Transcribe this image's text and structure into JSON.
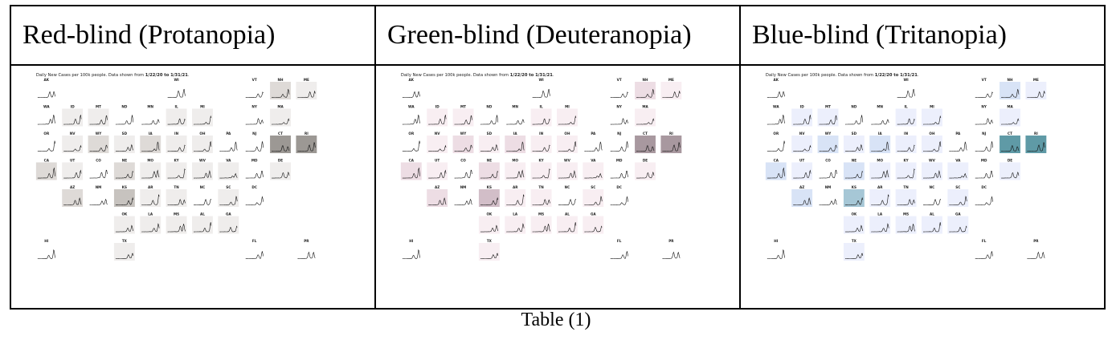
{
  "table": {
    "headers": [
      "Red-blind (Protanopia)",
      "Green-blind (Deuteranopia)",
      "Blue-blind (Tritanopia)"
    ],
    "caption": "Table (1)"
  },
  "map": {
    "description_prefix": "Daily New Cases per 100k people. Data shown from ",
    "description_range": "1/22/20 to 1/31/21",
    "description_suffix": ".",
    "states": [
      {
        "code": "AK",
        "col": 0,
        "row": 0,
        "level": 0
      },
      {
        "code": "WI",
        "col": 5,
        "row": 0,
        "level": 0
      },
      {
        "code": "VT",
        "col": 8,
        "row": 0,
        "level": 0
      },
      {
        "code": "NH",
        "col": 9,
        "row": 0,
        "level": 2
      },
      {
        "code": "ME",
        "col": 10,
        "row": 0,
        "level": 1
      },
      {
        "code": "WA",
        "col": 0,
        "row": 1,
        "level": 0
      },
      {
        "code": "ID",
        "col": 1,
        "row": 1,
        "level": 1
      },
      {
        "code": "MT",
        "col": 2,
        "row": 1,
        "level": 1
      },
      {
        "code": "ND",
        "col": 3,
        "row": 1,
        "level": 0
      },
      {
        "code": "MN",
        "col": 4,
        "row": 1,
        "level": 0
      },
      {
        "code": "IL",
        "col": 5,
        "row": 1,
        "level": 1
      },
      {
        "code": "MI",
        "col": 6,
        "row": 1,
        "level": 1
      },
      {
        "code": "NY",
        "col": 8,
        "row": 1,
        "level": 0
      },
      {
        "code": "MA",
        "col": 9,
        "row": 1,
        "level": 1
      },
      {
        "code": "OR",
        "col": 0,
        "row": 2,
        "level": 0
      },
      {
        "code": "NV",
        "col": 1,
        "row": 2,
        "level": 1
      },
      {
        "code": "WY",
        "col": 2,
        "row": 2,
        "level": 2
      },
      {
        "code": "SD",
        "col": 3,
        "row": 2,
        "level": 1
      },
      {
        "code": "IA",
        "col": 4,
        "row": 2,
        "level": 2
      },
      {
        "code": "IN",
        "col": 5,
        "row": 2,
        "level": 1
      },
      {
        "code": "OH",
        "col": 6,
        "row": 2,
        "level": 1
      },
      {
        "code": "PA",
        "col": 7,
        "row": 2,
        "level": 0
      },
      {
        "code": "NJ",
        "col": 8,
        "row": 2,
        "level": 0
      },
      {
        "code": "CT",
        "col": 9,
        "row": 2,
        "level": 4
      },
      {
        "code": "RI",
        "col": 10,
        "row": 2,
        "level": 4
      },
      {
        "code": "CA",
        "col": 0,
        "row": 3,
        "level": 2
      },
      {
        "code": "UT",
        "col": 1,
        "row": 3,
        "level": 1
      },
      {
        "code": "CO",
        "col": 2,
        "row": 3,
        "level": 0
      },
      {
        "code": "NE",
        "col": 3,
        "row": 3,
        "level": 2
      },
      {
        "code": "MO",
        "col": 4,
        "row": 3,
        "level": 1
      },
      {
        "code": "KY",
        "col": 5,
        "row": 3,
        "level": 1
      },
      {
        "code": "WV",
        "col": 6,
        "row": 3,
        "level": 1
      },
      {
        "code": "VA",
        "col": 7,
        "row": 3,
        "level": 1
      },
      {
        "code": "MD",
        "col": 8,
        "row": 3,
        "level": 0
      },
      {
        "code": "DE",
        "col": 9,
        "row": 3,
        "level": 1
      },
      {
        "code": "AZ",
        "col": 1,
        "row": 4,
        "level": 2
      },
      {
        "code": "NM",
        "col": 2,
        "row": 4,
        "level": 0
      },
      {
        "code": "KS",
        "col": 3,
        "row": 4,
        "level": 3
      },
      {
        "code": "AR",
        "col": 4,
        "row": 4,
        "level": 1
      },
      {
        "code": "TN",
        "col": 5,
        "row": 4,
        "level": 1
      },
      {
        "code": "NC",
        "col": 6,
        "row": 4,
        "level": 0
      },
      {
        "code": "SC",
        "col": 7,
        "row": 4,
        "level": 1
      },
      {
        "code": "DC",
        "col": 8,
        "row": 4,
        "level": 0
      },
      {
        "code": "OK",
        "col": 3,
        "row": 5,
        "level": 1
      },
      {
        "code": "LA",
        "col": 4,
        "row": 5,
        "level": 1
      },
      {
        "code": "MS",
        "col": 5,
        "row": 5,
        "level": 1
      },
      {
        "code": "AL",
        "col": 6,
        "row": 5,
        "level": 1
      },
      {
        "code": "GA",
        "col": 7,
        "row": 5,
        "level": 1
      },
      {
        "code": "HI",
        "col": 0,
        "row": 6,
        "level": 0
      },
      {
        "code": "TX",
        "col": 3,
        "row": 6,
        "level": 1
      },
      {
        "code": "FL",
        "col": 8,
        "row": 6,
        "level": 0
      },
      {
        "code": "PR",
        "col": 10,
        "row": 6,
        "level": 0
      }
    ]
  },
  "palettes": {
    "protanopia": [
      "#ffffff",
      "#efedec",
      "#dedad7",
      "#c7c3bf",
      "#9c9894"
    ],
    "deuteranopia": [
      "#ffffff",
      "#f8eef2",
      "#eddde4",
      "#d2bec8",
      "#a8989f"
    ],
    "tritanopia": [
      "#ffffff",
      "#eceffc",
      "#d8e3f6",
      "#a6c7d6",
      "#5f9aa6"
    ]
  }
}
